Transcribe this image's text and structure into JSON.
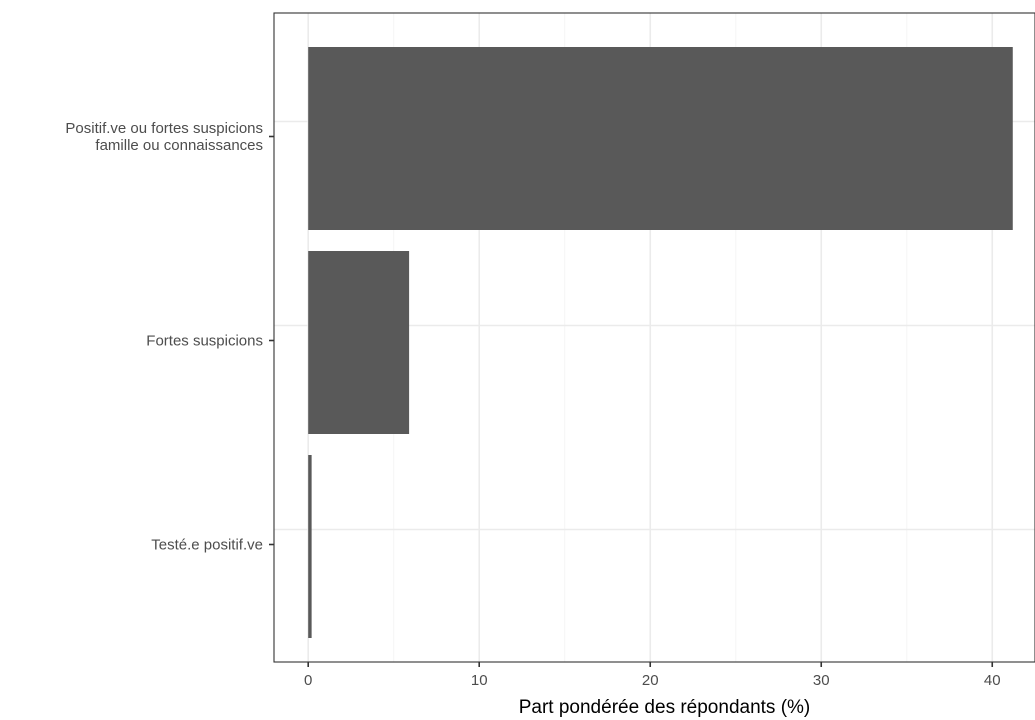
{
  "chart_data": {
    "type": "bar",
    "orientation": "horizontal",
    "categories": [
      "Positif.ve ou fortes suspicions\nfamille ou connaissances",
      "Fortes suspicions",
      "Testé.e positif.ve"
    ],
    "values": [
      41.2,
      5.9,
      0.2
    ],
    "title": "",
    "xlabel": "Part pondérée des répondants (%)",
    "ylabel": "",
    "xlim": [
      -2,
      42.5
    ],
    "xticks": [
      0,
      10,
      20,
      30,
      40
    ],
    "grid": true,
    "legend": "none",
    "colors": {
      "bar": "#595959",
      "grid_major": "#ebebeb",
      "grid_minor": "#f5f5f5",
      "panel_border": "#333333",
      "tick_text": "#4d4d4d",
      "axis_title": "#000000"
    }
  }
}
